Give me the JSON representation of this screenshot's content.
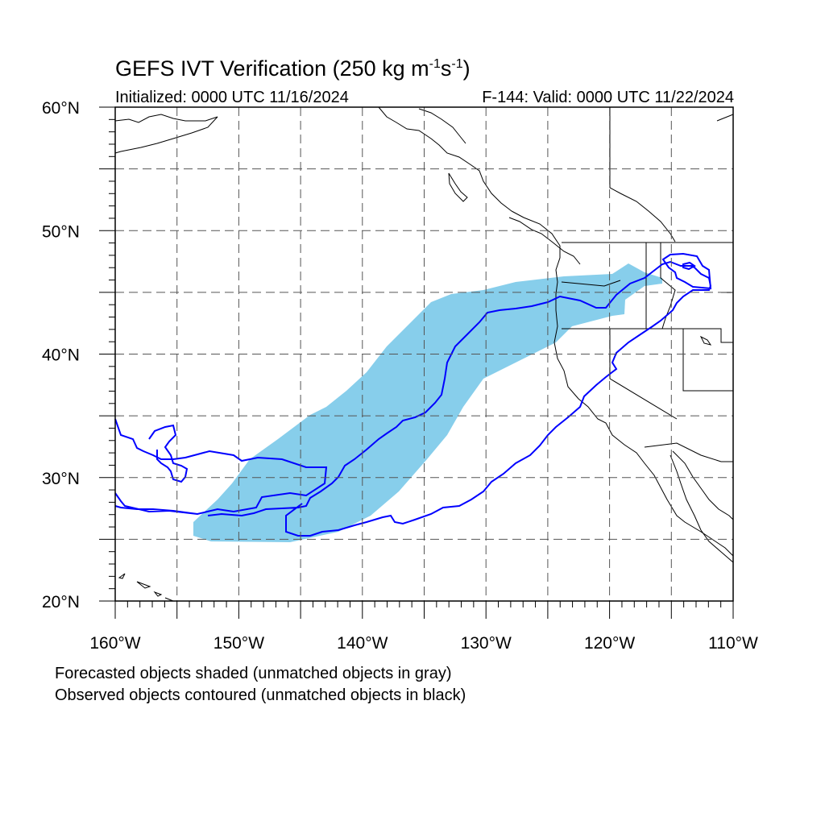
{
  "title": {
    "main": "GEFS IVT Verification (250 kg m",
    "exp1": "-1",
    "mid": "s",
    "exp2": "-1",
    "end": ")"
  },
  "subtitle_left": "Initialized: 0000 UTC 11/16/2024",
  "subtitle_right": "F-144: Valid: 0000 UTC 11/22/2024",
  "map": {
    "lat_labels": [
      "60°N",
      "50°N",
      "40°N",
      "30°N",
      "20°N"
    ],
    "lon_labels": [
      "160°W",
      "150°W",
      "140°W",
      "130°W",
      "120°W",
      "110°W"
    ],
    "forecast_fill_color": "#87ceeb",
    "observed_contour_color": "#0000ff",
    "gridlines": "dashed"
  },
  "legend": {
    "line1": "Forecasted objects shaded (unmatched objects in gray)",
    "line2": "Observed objects contoured (unmatched objects in black)"
  }
}
